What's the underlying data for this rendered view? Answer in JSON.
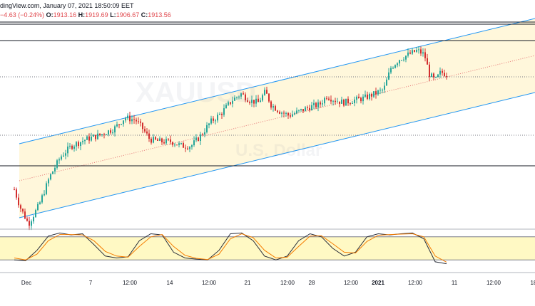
{
  "header": {
    "line1": "dingView.com, January 07, 2021 18:50:09 EET",
    "change": "−4.63 (−0.24%)",
    "o_label": "O:",
    "o_value": "1913.16",
    "h_label": "H:",
    "h_value": "1919.69",
    "l_label": "L:",
    "l_value": "1906.67",
    "c_label": "C:",
    "c_value": "1913.56"
  },
  "watermark": {
    "symbol": "XAUUSD",
    "currency": "U.S. Dollar"
  },
  "colors": {
    "up": "#26a69a",
    "down": "#d32f2f",
    "channel": "#2196f3",
    "channel_fill": "#fff6d5",
    "stoch_k": "#2a2e39",
    "stoch_d": "#f57c00",
    "stoch_band": "#fff9c4"
  },
  "chart_data": [
    {
      "type": "candlestick",
      "title": "",
      "x_tick_labels": [
        "Dec",
        "7",
        "12:00",
        "14",
        "12:00",
        "21",
        "12:00",
        "28",
        "12:00",
        "2021",
        "12:00",
        "11",
        "12:00",
        "18"
      ],
      "grid": false,
      "close_series": [
        {
          "x": 0,
          "close": 0.52
        },
        {
          "x": 8,
          "close": 0.44
        },
        {
          "x": 20,
          "close": 0.36
        },
        {
          "x": 35,
          "close": 0.45
        },
        {
          "x": 50,
          "close": 0.58
        },
        {
          "x": 65,
          "close": 0.67
        },
        {
          "x": 80,
          "close": 0.72
        },
        {
          "x": 100,
          "close": 0.75
        },
        {
          "x": 120,
          "close": 0.77
        },
        {
          "x": 140,
          "close": 0.8
        },
        {
          "x": 155,
          "close": 0.85
        },
        {
          "x": 170,
          "close": 0.84
        },
        {
          "x": 180,
          "close": 0.8
        },
        {
          "x": 190,
          "close": 0.75
        },
        {
          "x": 205,
          "close": 0.74
        },
        {
          "x": 220,
          "close": 0.74
        },
        {
          "x": 235,
          "close": 0.72
        },
        {
          "x": 248,
          "close": 0.72
        },
        {
          "x": 262,
          "close": 0.77
        },
        {
          "x": 275,
          "close": 0.83
        },
        {
          "x": 290,
          "close": 0.87
        },
        {
          "x": 305,
          "close": 0.93
        },
        {
          "x": 318,
          "close": 0.96
        },
        {
          "x": 330,
          "close": 0.93
        },
        {
          "x": 342,
          "close": 0.92
        },
        {
          "x": 352,
          "close": 0.97
        },
        {
          "x": 360,
          "close": 0.91
        },
        {
          "x": 372,
          "close": 0.88
        },
        {
          "x": 385,
          "close": 0.86
        },
        {
          "x": 400,
          "close": 0.88
        },
        {
          "x": 415,
          "close": 0.9
        },
        {
          "x": 428,
          "close": 0.91
        },
        {
          "x": 438,
          "close": 0.95
        },
        {
          "x": 450,
          "close": 0.93
        },
        {
          "x": 462,
          "close": 0.92
        },
        {
          "x": 475,
          "close": 0.93
        },
        {
          "x": 490,
          "close": 0.94
        },
        {
          "x": 505,
          "close": 0.96
        },
        {
          "x": 518,
          "close": 0.98
        },
        {
          "x": 528,
          "close": 1.08
        },
        {
          "x": 540,
          "close": 1.12
        },
        {
          "x": 552,
          "close": 1.14
        },
        {
          "x": 565,
          "close": 1.16
        },
        {
          "x": 575,
          "close": 1.14
        },
        {
          "x": 582,
          "close": 1.05
        },
        {
          "x": 590,
          "close": 1.02
        },
        {
          "x": 598,
          "close": 1.06
        },
        {
          "x": 606,
          "close": 1.05
        }
      ],
      "levels": [
        1.28,
        1.19,
        0.79,
        0.48
      ],
      "dotted_levels": [
        1.05,
        0.66
      ]
    },
    {
      "type": "line",
      "title": "",
      "series": [
        {
          "values": [
            20,
            18,
            45,
            82,
            90,
            85,
            88,
            60,
            30,
            25,
            28,
            70,
            88,
            85,
            40,
            25,
            22,
            20,
            45,
            88,
            90,
            70,
            30,
            20,
            30,
            70,
            88,
            80,
            50,
            30,
            40,
            80,
            88,
            85,
            88,
            90,
            75,
            15,
            10
          ]
        },
        {
          "values": [
            25,
            20,
            35,
            70,
            86,
            86,
            85,
            70,
            42,
            30,
            27,
            55,
            80,
            86,
            55,
            32,
            24,
            21,
            35,
            75,
            88,
            78,
            45,
            25,
            27,
            55,
            82,
            83,
            62,
            40,
            38,
            68,
            84,
            86,
            87,
            88,
            80,
            30,
            14
          ]
        }
      ],
      "ylim": [
        0,
        100
      ],
      "band": [
        20,
        80
      ]
    }
  ]
}
